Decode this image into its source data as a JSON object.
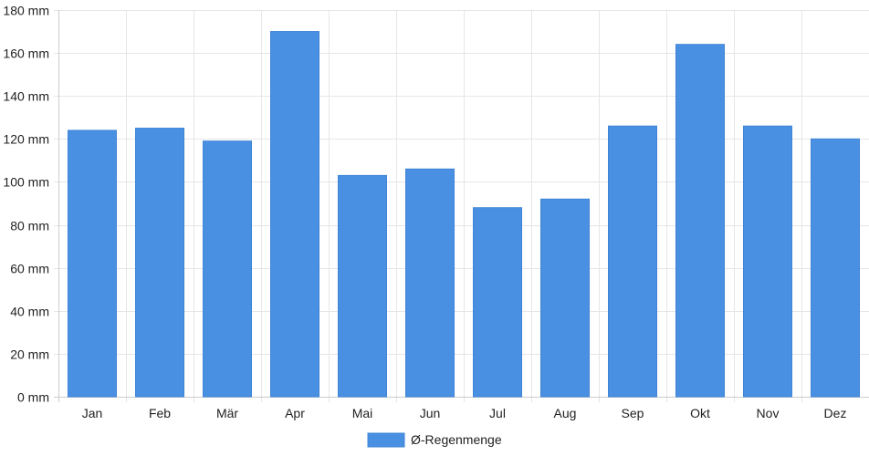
{
  "chart_data": {
    "type": "bar",
    "categories": [
      "Jan",
      "Feb",
      "Mär",
      "Apr",
      "Mai",
      "Jun",
      "Jul",
      "Aug",
      "Sep",
      "Okt",
      "Nov",
      "Dez"
    ],
    "series": [
      {
        "name": "Ø-Regenmenge",
        "color": "#4a90e2",
        "values": [
          124,
          125,
          119,
          170,
          103,
          106,
          88,
          92,
          126,
          164,
          126,
          120
        ]
      }
    ],
    "ylim": [
      0,
      180
    ],
    "y_ticks": [
      0,
      20,
      40,
      60,
      80,
      100,
      120,
      140,
      160,
      180
    ],
    "y_tick_suffix": " mm",
    "grid": true,
    "legend_placement": "bottom-center"
  }
}
